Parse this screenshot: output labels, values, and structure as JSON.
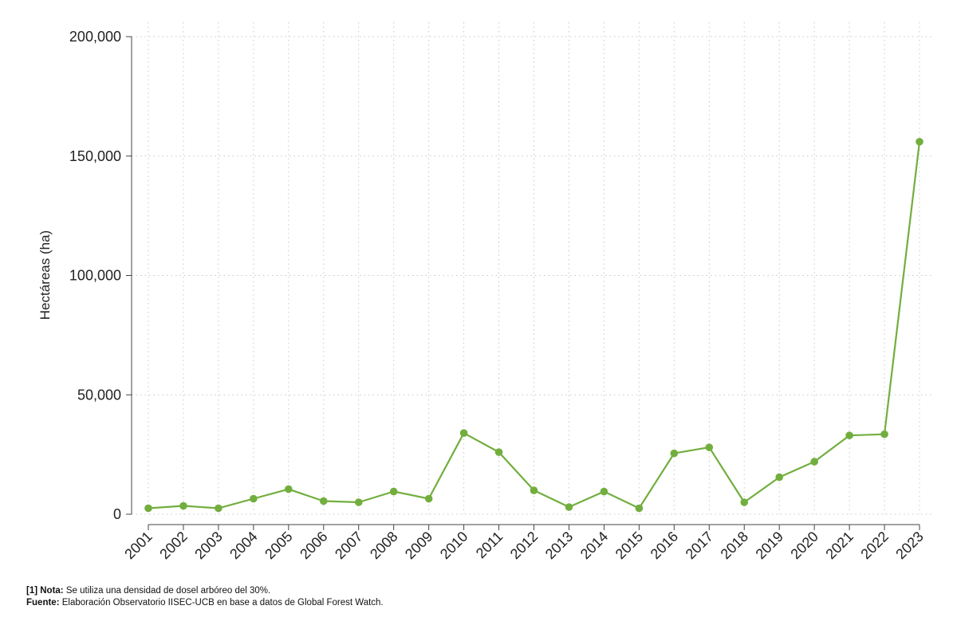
{
  "chart_data": {
    "type": "line",
    "title": "",
    "xlabel": "",
    "ylabel": "Hectáreas (ha)",
    "x": [
      "2001",
      "2002",
      "2003",
      "2004",
      "2005",
      "2006",
      "2007",
      "2008",
      "2009",
      "2010",
      "2011",
      "2012",
      "2013",
      "2014",
      "2015",
      "2016",
      "2017",
      "2018",
      "2019",
      "2020",
      "2021",
      "2022",
      "2023"
    ],
    "series": [
      {
        "values": [
          2500,
          3500,
          2500,
          6500,
          10500,
          5500,
          5000,
          9500,
          6500,
          34000,
          26000,
          10000,
          3000,
          9500,
          2500,
          25500,
          28000,
          5000,
          15500,
          22000,
          33000,
          33500,
          156000
        ],
        "color": "#72ae3e"
      }
    ],
    "ylim": [
      0,
      200000
    ],
    "yticks": [
      0,
      50000,
      100000,
      150000,
      200000
    ],
    "ytick_labels": [
      "0",
      "50,000",
      "100,000",
      "150,000",
      "200,000"
    ],
    "grid": true,
    "grid_style": "dotted"
  },
  "footnotes": {
    "nota_label": "[1] Nota:",
    "nota_text": " Se utiliza una densidad de dosel arbóreo del 30%.",
    "fuente_label": "Fuente:",
    "fuente_text": " Elaboración Observatorio IISEC-UCB en base a datos de Global Forest Watch."
  }
}
